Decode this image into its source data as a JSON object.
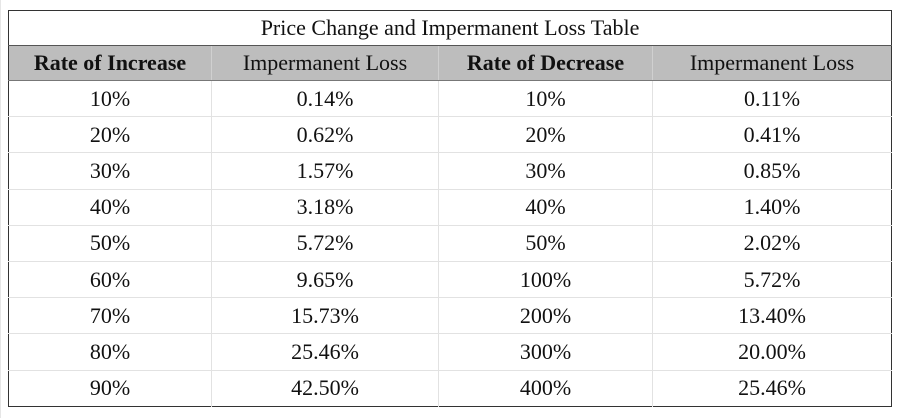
{
  "table": {
    "title": "Price Change and Impermanent Loss Table",
    "headers": [
      "Rate of Increase",
      "Impermanent Loss",
      "Rate of Decrease",
      "Impermanent Loss"
    ],
    "rows": [
      [
        "10%",
        "0.14%",
        "10%",
        "0.11%"
      ],
      [
        "20%",
        "0.62%",
        "20%",
        "0.41%"
      ],
      [
        "30%",
        "1.57%",
        "30%",
        "0.85%"
      ],
      [
        "40%",
        "3.18%",
        "40%",
        "1.40%"
      ],
      [
        "50%",
        "5.72%",
        "50%",
        "2.02%"
      ],
      [
        "60%",
        "9.65%",
        "100%",
        "5.72%"
      ],
      [
        "70%",
        "15.73%",
        "200%",
        "13.40%"
      ],
      [
        "80%",
        "25.46%",
        "300%",
        "20.00%"
      ],
      [
        "90%",
        "42.50%",
        "400%",
        "25.46%"
      ]
    ]
  },
  "colors": {
    "header_background": "#bdbdbd",
    "text": "#111111"
  }
}
